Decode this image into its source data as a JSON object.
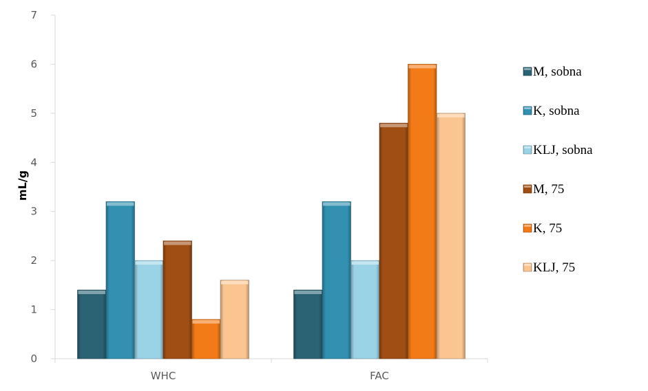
{
  "chart_data": {
    "type": "bar",
    "categories": [
      "WHC",
      "FAC"
    ],
    "series": [
      {
        "name": "M, sobna",
        "values": [
          1.4,
          1.4
        ],
        "color": "#2b6374"
      },
      {
        "name": "K, sobna",
        "values": [
          3.2,
          3.2
        ],
        "color": "#3290b1"
      },
      {
        "name": "KLJ, sobna",
        "values": [
          2.0,
          2.0
        ],
        "color": "#9bd3e6"
      },
      {
        "name": "M, 75",
        "values": [
          2.4,
          4.8
        ],
        "color": "#a04e14"
      },
      {
        "name": "K, 75",
        "values": [
          0.8,
          6.0
        ],
        "color": "#f27b17"
      },
      {
        "name": "KLJ, 75",
        "values": [
          1.6,
          5.0
        ],
        "color": "#fbc592"
      }
    ],
    "title": "",
    "xlabel": "",
    "ylabel": "mL/g",
    "ylim": [
      0,
      7
    ],
    "yticks": [
      "0",
      "1",
      "2",
      "3",
      "4",
      "5",
      "6",
      "7"
    ],
    "grid": false,
    "legend_position": "right"
  }
}
